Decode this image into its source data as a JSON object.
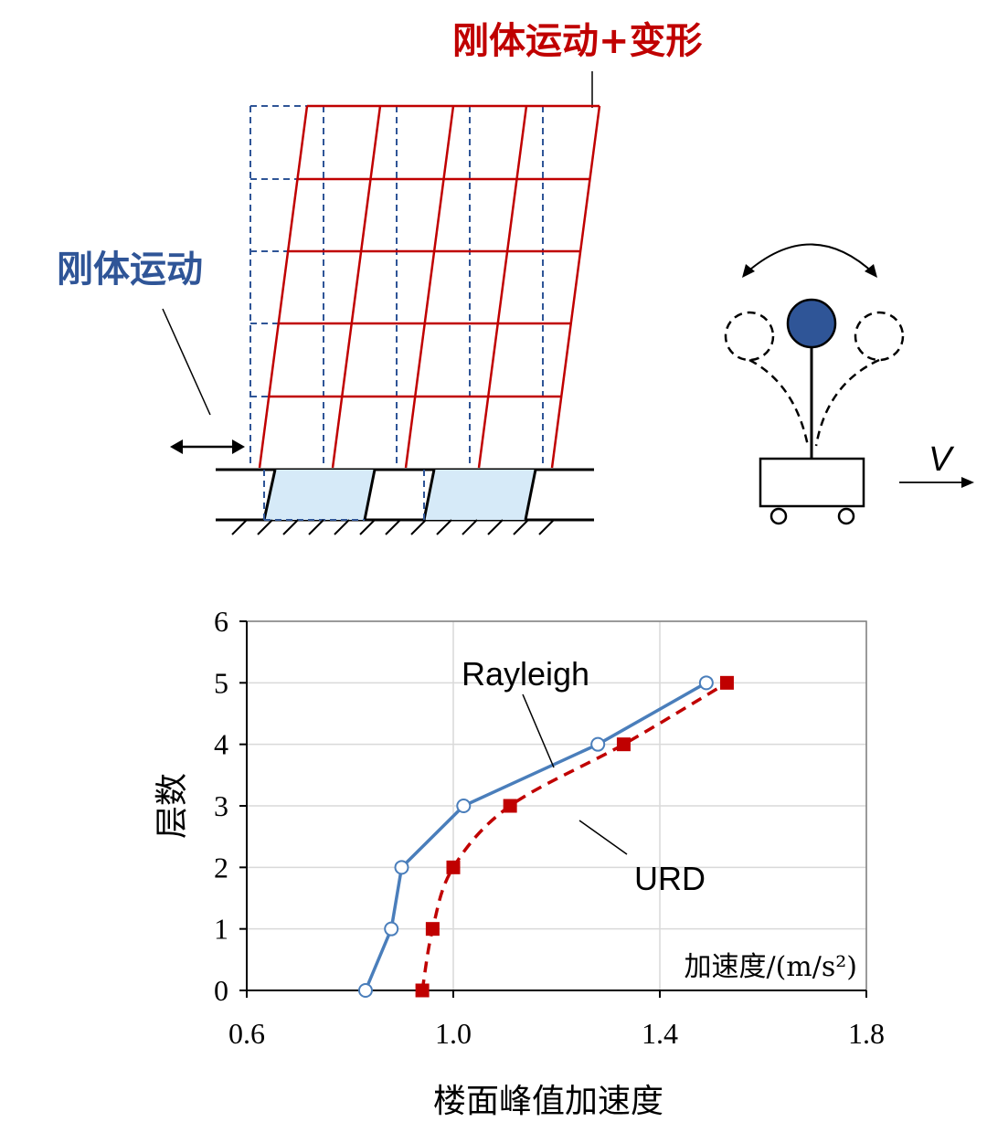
{
  "diagram": {
    "label_rigid_deform": "刚体运动+变形",
    "label_rigid": "刚体运动",
    "label_velocity": "V",
    "colors": {
      "deformed": "#c00000",
      "rigid": "#2f5597",
      "isolator": "#d6eaf8",
      "ball": "#2f5597"
    }
  },
  "chart_data": {
    "type": "line",
    "xlabel": "楼面峰值加速度",
    "ylabel": "层数",
    "unit_label": "加速度/(m/s²)",
    "xlim": [
      0.6,
      1.8
    ],
    "ylim": [
      0,
      6
    ],
    "x_ticks": [
      "0.6",
      "1.0",
      "1.4",
      "1.8"
    ],
    "y_ticks": [
      "0",
      "1",
      "2",
      "3",
      "4",
      "5",
      "6"
    ],
    "grid": true,
    "series": [
      {
        "name": "Rayleigh",
        "color": "#4a7ebb",
        "marker": "open-circle",
        "dash": false,
        "x": [
          0.83,
          0.88,
          0.9,
          1.02,
          1.28,
          1.49
        ],
        "y": [
          0,
          1,
          2,
          3,
          4,
          5
        ]
      },
      {
        "name": "URD",
        "color": "#c00000",
        "marker": "filled-square",
        "dash": true,
        "x": [
          0.94,
          0.96,
          1.0,
          1.11,
          1.33,
          1.53
        ],
        "y": [
          0,
          1,
          2,
          3,
          4,
          5
        ]
      }
    ]
  }
}
